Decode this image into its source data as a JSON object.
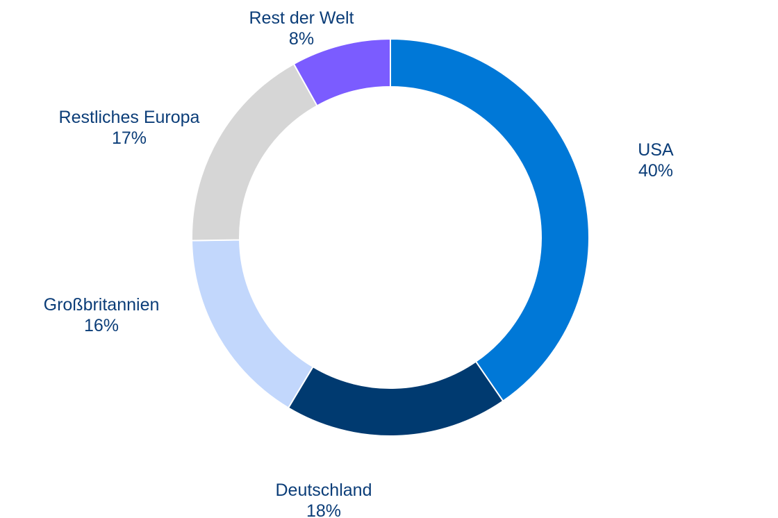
{
  "chart_data": {
    "type": "pie",
    "variant": "donut",
    "start_angle_deg": 0,
    "direction": "clockwise",
    "slices": [
      {
        "label": "USA",
        "value": 40,
        "value_label": "40%",
        "color": "#0078d7"
      },
      {
        "label": "Deutschland",
        "value": 18,
        "value_label": "18%",
        "color": "#003a70"
      },
      {
        "label": "Großbritannien",
        "value": 16,
        "value_label": "16%",
        "color": "#c2d7fc"
      },
      {
        "label": "Restliches Europa",
        "value": 17,
        "value_label": "17%",
        "color": "#d6d6d6"
      },
      {
        "label": "Rest der Welt",
        "value": 8,
        "value_label": "8%",
        "color": "#7b5cff"
      }
    ],
    "label_color": "#0b3d78",
    "separator_color": "#ffffff"
  }
}
